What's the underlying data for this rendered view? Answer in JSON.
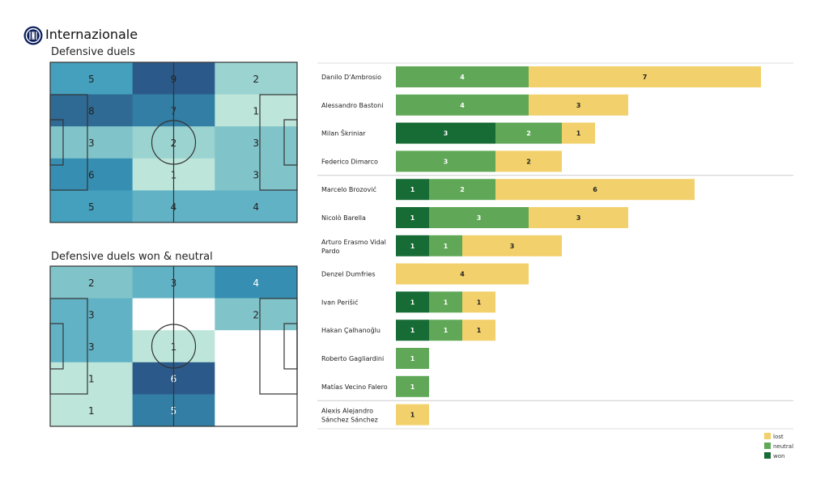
{
  "header": {
    "team": "Internazionale",
    "logo_icon": "inter-crest-icon"
  },
  "colors": {
    "won": "#176b35",
    "neutral": "#60a857",
    "lost": "#f2d06b"
  },
  "chart_data": [
    {
      "type": "heatmap",
      "title": "Defensive duels",
      "rows": 5,
      "cols": 3,
      "values": [
        [
          5,
          9,
          2
        ],
        [
          8,
          7,
          1
        ],
        [
          3,
          2,
          3
        ],
        [
          6,
          1,
          3
        ],
        [
          5,
          4,
          4
        ]
      ]
    },
    {
      "type": "heatmap",
      "title": "Defensive duels won & neutral",
      "rows": 5,
      "cols": 3,
      "values": [
        [
          2,
          3,
          4
        ],
        [
          3,
          null,
          2
        ],
        [
          3,
          1,
          null
        ],
        [
          1,
          6,
          null
        ],
        [
          1,
          5,
          null
        ]
      ]
    },
    {
      "type": "bar",
      "orientation": "horizontal",
      "stacked": true,
      "legend": [
        "lost",
        "neutral",
        "won"
      ],
      "legend_position": "bottom-right",
      "series_order": [
        "won",
        "neutral",
        "lost"
      ],
      "players": [
        {
          "name": "Danilo D'Ambrosio",
          "won": 0,
          "neutral": 4,
          "lost": 7
        },
        {
          "name": "Alessandro Bastoni",
          "won": 0,
          "neutral": 4,
          "lost": 3
        },
        {
          "name": "Milan Škriniar",
          "won": 3,
          "neutral": 2,
          "lost": 1
        },
        {
          "name": "Federico Dimarco",
          "won": 0,
          "neutral": 3,
          "lost": 2
        },
        {
          "name": "Marcelo Brozović",
          "won": 1,
          "neutral": 2,
          "lost": 6
        },
        {
          "name": "Nicolò Barella",
          "won": 1,
          "neutral": 3,
          "lost": 3
        },
        {
          "name": "Arturo Erasmo Vidal Pardo",
          "won": 1,
          "neutral": 1,
          "lost": 3
        },
        {
          "name": "Denzel Dumfries",
          "won": 0,
          "neutral": 0,
          "lost": 4
        },
        {
          "name": "Ivan Perišić",
          "won": 1,
          "neutral": 1,
          "lost": 1
        },
        {
          "name": "Hakan Çalhanoğlu",
          "won": 1,
          "neutral": 1,
          "lost": 1
        },
        {
          "name": "Roberto Gagliardini",
          "won": 0,
          "neutral": 1,
          "lost": 0
        },
        {
          "name": "Matías Vecino Falero",
          "won": 0,
          "neutral": 1,
          "lost": 0
        },
        {
          "name": "Alexis Alejandro Sánchez Sánchez",
          "won": 0,
          "neutral": 0,
          "lost": 1
        }
      ],
      "group_separators_after": [
        3,
        11
      ]
    }
  ]
}
